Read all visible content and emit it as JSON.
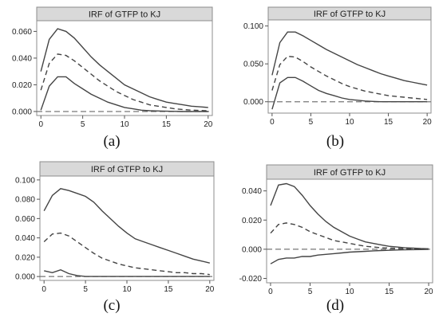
{
  "chart_data": [
    {
      "type": "line",
      "title": "IRF of GTFP to KJ",
      "caption": "(a)",
      "x": [
        0,
        1,
        2,
        3,
        4,
        5,
        6,
        7,
        8,
        9,
        10,
        11,
        12,
        13,
        14,
        15,
        16,
        17,
        18,
        19,
        20
      ],
      "xticks": [
        0,
        5,
        10,
        15,
        20
      ],
      "yticks": [
        "0.000",
        "0.020",
        "0.040",
        "0.060"
      ],
      "ylim": [
        -0.003,
        0.068
      ],
      "xlim": [
        -0.5,
        20.5
      ],
      "zero_line": true,
      "series": [
        {
          "style": "upper",
          "values": [
            0.03,
            0.054,
            0.062,
            0.06,
            0.055,
            0.048,
            0.041,
            0.035,
            0.03,
            0.025,
            0.02,
            0.017,
            0.014,
            0.011,
            0.009,
            0.007,
            0.006,
            0.005,
            0.004,
            0.0035,
            0.003
          ]
        },
        {
          "style": "estimate",
          "values": [
            0.016,
            0.036,
            0.043,
            0.042,
            0.038,
            0.033,
            0.028,
            0.023,
            0.019,
            0.015,
            0.012,
            0.009,
            0.007,
            0.005,
            0.004,
            0.003,
            0.002,
            0.0015,
            0.001,
            0.0008,
            0.0005
          ]
        },
        {
          "style": "lower",
          "values": [
            0.001,
            0.019,
            0.026,
            0.026,
            0.021,
            0.017,
            0.013,
            0.01,
            0.007,
            0.005,
            0.003,
            0.002,
            0.001,
            0.0006,
            0.0004,
            0.0002,
            0.0001,
            0.0,
            0.0,
            0.0,
            0.0
          ]
        }
      ]
    },
    {
      "type": "line",
      "title": "IRF of GTFP to KJ",
      "caption": "(b)",
      "x": [
        0,
        1,
        2,
        3,
        4,
        5,
        6,
        7,
        8,
        9,
        10,
        11,
        12,
        13,
        14,
        15,
        16,
        17,
        18,
        19,
        20
      ],
      "xticks": [
        0,
        5,
        10,
        15,
        20
      ],
      "yticks": [
        "0.000",
        "0.050",
        "0.100"
      ],
      "ylim": [
        -0.015,
        0.108
      ],
      "xlim": [
        -0.5,
        20.5
      ],
      "zero_line": true,
      "series": [
        {
          "style": "upper",
          "values": [
            0.035,
            0.078,
            0.092,
            0.092,
            0.087,
            0.081,
            0.075,
            0.069,
            0.064,
            0.059,
            0.054,
            0.049,
            0.045,
            0.041,
            0.037,
            0.034,
            0.031,
            0.028,
            0.026,
            0.024,
            0.022
          ]
        },
        {
          "style": "estimate",
          "values": [
            0.015,
            0.049,
            0.06,
            0.059,
            0.053,
            0.046,
            0.04,
            0.034,
            0.029,
            0.024,
            0.02,
            0.017,
            0.014,
            0.012,
            0.01,
            0.008,
            0.007,
            0.006,
            0.005,
            0.004,
            0.003
          ]
        },
        {
          "style": "lower",
          "values": [
            -0.01,
            0.025,
            0.032,
            0.032,
            0.027,
            0.021,
            0.015,
            0.011,
            0.008,
            0.005,
            0.003,
            0.002,
            0.001,
            0.0005,
            0.0,
            0.0,
            0.0,
            0.0,
            0.0,
            0.0,
            0.0
          ]
        }
      ]
    },
    {
      "type": "line",
      "title": "IRF of GTFP to KJ",
      "caption": "(c)",
      "x": [
        0,
        1,
        2,
        3,
        4,
        5,
        6,
        7,
        8,
        9,
        10,
        11,
        12,
        13,
        14,
        15,
        16,
        17,
        18,
        19,
        20
      ],
      "xticks": [
        0,
        5,
        10,
        15,
        20
      ],
      "yticks": [
        "0.000",
        "0.020",
        "0.040",
        "0.060",
        "0.080",
        "0.100"
      ],
      "ylim": [
        -0.004,
        0.104
      ],
      "xlim": [
        -0.5,
        20.5
      ],
      "zero_line": true,
      "series": [
        {
          "style": "upper",
          "values": [
            0.068,
            0.084,
            0.091,
            0.089,
            0.086,
            0.083,
            0.077,
            0.068,
            0.06,
            0.052,
            0.045,
            0.039,
            0.036,
            0.033,
            0.03,
            0.027,
            0.024,
            0.021,
            0.018,
            0.016,
            0.014
          ]
        },
        {
          "style": "estimate",
          "values": [
            0.036,
            0.044,
            0.045,
            0.042,
            0.036,
            0.03,
            0.024,
            0.019,
            0.016,
            0.013,
            0.011,
            0.009,
            0.008,
            0.007,
            0.006,
            0.005,
            0.004,
            0.004,
            0.003,
            0.003,
            0.002
          ]
        },
        {
          "style": "lower",
          "values": [
            0.006,
            0.004,
            0.007,
            0.003,
            0.001,
            0.0,
            0.0,
            0.0,
            0.0,
            0.0,
            0.0,
            0.0,
            0.0,
            0.0,
            0.0,
            0.0,
            0.0,
            0.0,
            0.0,
            0.0,
            0.0
          ]
        }
      ]
    },
    {
      "type": "line",
      "title": "IRF of GTFP to KJ",
      "caption": "(d)",
      "x": [
        0,
        1,
        2,
        3,
        4,
        5,
        6,
        7,
        8,
        9,
        10,
        11,
        12,
        13,
        14,
        15,
        16,
        17,
        18,
        19,
        20
      ],
      "xticks": [
        0,
        5,
        10,
        15,
        20
      ],
      "yticks": [
        "-0.020",
        "0.000",
        "0.020",
        "0.040"
      ],
      "ylim": [
        -0.023,
        0.048
      ],
      "xlim": [
        -0.5,
        20.5
      ],
      "zero_line": true,
      "series": [
        {
          "style": "upper",
          "values": [
            0.03,
            0.044,
            0.045,
            0.043,
            0.037,
            0.03,
            0.024,
            0.019,
            0.015,
            0.012,
            0.009,
            0.007,
            0.005,
            0.004,
            0.003,
            0.002,
            0.0015,
            0.001,
            0.0008,
            0.0005,
            0.0003
          ]
        },
        {
          "style": "estimate",
          "values": [
            0.011,
            0.017,
            0.018,
            0.017,
            0.015,
            0.012,
            0.01,
            0.008,
            0.006,
            0.005,
            0.004,
            0.003,
            0.002,
            0.0015,
            0.001,
            0.0008,
            0.0006,
            0.0004,
            0.0003,
            0.0002,
            0.0001
          ]
        },
        {
          "style": "lower",
          "values": [
            -0.01,
            -0.007,
            -0.006,
            -0.006,
            -0.005,
            -0.005,
            -0.004,
            -0.0035,
            -0.003,
            -0.0025,
            -0.002,
            -0.0017,
            -0.0014,
            -0.0011,
            -0.0009,
            -0.0007,
            -0.0005,
            -0.0004,
            -0.0003,
            -0.0002,
            -0.0001
          ]
        }
      ]
    }
  ]
}
